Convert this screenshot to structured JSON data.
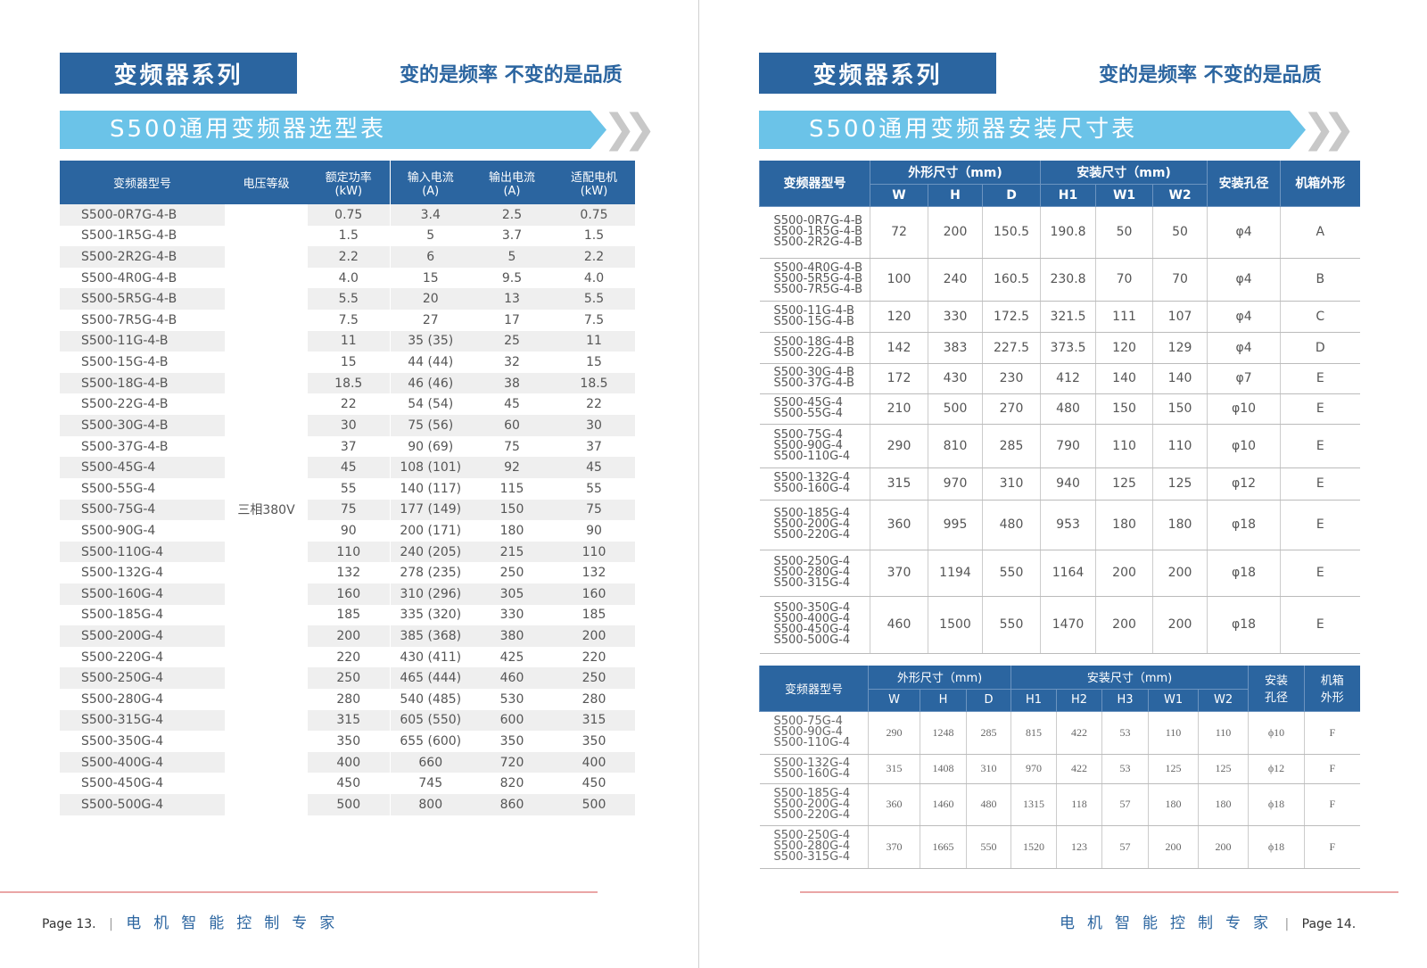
{
  "header": {
    "series_label": "变频器系列",
    "slogan": "变的是频率 不变的是品质"
  },
  "left": {
    "banner": "S500通用变频器选型表",
    "columns": [
      "变频器型号",
      "电压等级",
      "额定功率\n(kW)",
      "输入电流\n(A)",
      "输出电流\n(A)",
      "适配电机\n(kW)"
    ],
    "voltage": "三相380V",
    "rows": [
      [
        "S500-0R7G-4-B",
        "0.75",
        "3.4",
        "2.5",
        "0.75"
      ],
      [
        "S500-1R5G-4-B",
        "1.5",
        "5",
        "3.7",
        "1.5"
      ],
      [
        "S500-2R2G-4-B",
        "2.2",
        "6",
        "5",
        "2.2"
      ],
      [
        "S500-4R0G-4-B",
        "4.0",
        "15",
        "9.5",
        "4.0"
      ],
      [
        "S500-5R5G-4-B",
        "5.5",
        "20",
        "13",
        "5.5"
      ],
      [
        "S500-7R5G-4-B",
        "7.5",
        "27",
        "17",
        "7.5"
      ],
      [
        "S500-11G-4-B",
        "11",
        "35 (35)",
        "25",
        "11"
      ],
      [
        "S500-15G-4-B",
        "15",
        "44 (44)",
        "32",
        "15"
      ],
      [
        "S500-18G-4-B",
        "18.5",
        "46 (46)",
        "38",
        "18.5"
      ],
      [
        "S500-22G-4-B",
        "22",
        "54 (54)",
        "45",
        "22"
      ],
      [
        "S500-30G-4-B",
        "30",
        "75 (56)",
        "60",
        "30"
      ],
      [
        "S500-37G-4-B",
        "37",
        "90 (69)",
        "75",
        "37"
      ],
      [
        "S500-45G-4",
        "45",
        "108 (101)",
        "92",
        "45"
      ],
      [
        "S500-55G-4",
        "55",
        "140 (117)",
        "115",
        "55"
      ],
      [
        "S500-75G-4",
        "75",
        "177 (149)",
        "150",
        "75"
      ],
      [
        "S500-90G-4",
        "90",
        "200 (171)",
        "180",
        "90"
      ],
      [
        "S500-110G-4",
        "110",
        "240 (205)",
        "215",
        "110"
      ],
      [
        "S500-132G-4",
        "132",
        "278 (235)",
        "250",
        "132"
      ],
      [
        "S500-160G-4",
        "160",
        "310 (296)",
        "305",
        "160"
      ],
      [
        "S500-185G-4",
        "185",
        "335 (320)",
        "330",
        "185"
      ],
      [
        "S500-200G-4",
        "200",
        "385 (368)",
        "380",
        "200"
      ],
      [
        "S500-220G-4",
        "220",
        "430 (411)",
        "425",
        "220"
      ],
      [
        "S500-250G-4",
        "250",
        "465 (444)",
        "460",
        "250"
      ],
      [
        "S500-280G-4",
        "280",
        "540 (485)",
        "530",
        "280"
      ],
      [
        "S500-315G-4",
        "315",
        "605 (550)",
        "600",
        "315"
      ],
      [
        "S500-350G-4",
        "350",
        "655 (600)",
        "350",
        "350"
      ],
      [
        "S500-400G-4",
        "400",
        "660",
        "720",
        "400"
      ],
      [
        "S500-450G-4",
        "450",
        "745",
        "820",
        "450"
      ],
      [
        "S500-500G-4",
        "500",
        "800",
        "860",
        "500"
      ]
    ]
  },
  "right": {
    "banner": "S500通用变频器安装尺寸表",
    "table1": {
      "model_header": "变频器型号",
      "group1": "外形尺寸（mm)",
      "group2": "安装尺寸（mm)",
      "hole": "安装孔径",
      "case": "机箱外形",
      "sub1": [
        "W",
        "H",
        "D"
      ],
      "sub2": [
        "H1",
        "W1",
        "W2"
      ],
      "rows": [
        [
          [
            "S500-0R7G-4-B",
            "S500-1R5G-4-B",
            "S500-2R2G-4-B"
          ],
          "72",
          "200",
          "150.5",
          "190.8",
          "50",
          "50",
          "φ4",
          "A"
        ],
        [
          [
            "S500-4R0G-4-B",
            "S500-5R5G-4-B",
            "S500-7R5G-4-B"
          ],
          "100",
          "240",
          "160.5",
          "230.8",
          "70",
          "70",
          "φ4",
          "B"
        ],
        [
          [
            "S500-11G-4-B",
            "S500-15G-4-B"
          ],
          "120",
          "330",
          "172.5",
          "321.5",
          "111",
          "107",
          "φ4",
          "C"
        ],
        [
          [
            "S500-18G-4-B",
            "S500-22G-4-B"
          ],
          "142",
          "383",
          "227.5",
          "373.5",
          "120",
          "129",
          "φ4",
          "D"
        ],
        [
          [
            "S500-30G-4-B",
            "S500-37G-4-B"
          ],
          "172",
          "430",
          "230",
          "412",
          "140",
          "140",
          "φ7",
          "E"
        ],
        [
          [
            "S500-45G-4",
            "S500-55G-4"
          ],
          "210",
          "500",
          "270",
          "480",
          "150",
          "150",
          "φ10",
          "E"
        ],
        [
          [
            "S500-75G-4",
            "S500-90G-4",
            "S500-110G-4"
          ],
          "290",
          "810",
          "285",
          "790",
          "110",
          "110",
          "φ10",
          "E"
        ],
        [
          [
            "S500-132G-4",
            "S500-160G-4"
          ],
          "315",
          "970",
          "310",
          "940",
          "125",
          "125",
          "φ12",
          "E"
        ],
        [
          [
            "S500-185G-4",
            "S500-200G-4",
            "S500-220G-4"
          ],
          "360",
          "995",
          "480",
          "953",
          "180",
          "180",
          "φ18",
          "E"
        ],
        [
          [
            "S500-250G-4",
            "S500-280G-4",
            "S500-315G-4"
          ],
          "370",
          "1194",
          "550",
          "1164",
          "200",
          "200",
          "φ18",
          "E"
        ],
        [
          [
            "S500-350G-4",
            "S500-400G-4",
            "S500-450G-4",
            "S500-500G-4"
          ],
          "460",
          "1500",
          "550",
          "1470",
          "200",
          "200",
          "φ18",
          "E"
        ]
      ]
    },
    "table2": {
      "model_header": "变频器型号",
      "group1": "外形尺寸（mm)",
      "group2": "安装尺寸（mm)",
      "hole": "安装\n孔径",
      "case": "机箱\n外形",
      "sub1": [
        "W",
        "H",
        "D"
      ],
      "sub2": [
        "H1",
        "H2",
        "H3",
        "W1",
        "W2"
      ],
      "rows": [
        [
          [
            "S500-75G-4",
            "S500-90G-4",
            "S500-110G-4"
          ],
          "290",
          "1248",
          "285",
          "815",
          "422",
          "53",
          "110",
          "110",
          "ϕ10",
          "F"
        ],
        [
          [
            "S500-132G-4",
            "S500-160G-4"
          ],
          "315",
          "1408",
          "310",
          "970",
          "422",
          "53",
          "125",
          "125",
          "ϕ12",
          "F"
        ],
        [
          [
            "S500-185G-4",
            "S500-200G-4",
            "S500-220G-4"
          ],
          "360",
          "1460",
          "480",
          "1315",
          "118",
          "57",
          "180",
          "180",
          "ϕ18",
          "F"
        ],
        [
          [
            "S500-250G-4",
            "S500-280G-4",
            "S500-315G-4"
          ],
          "370",
          "1665",
          "550",
          "1520",
          "123",
          "57",
          "200",
          "200",
          "ϕ18",
          "F"
        ]
      ]
    }
  },
  "footer": {
    "left_page": "Page 13.",
    "right_page": "Page 14.",
    "motto": "电机智能控制专家"
  },
  "colors": {
    "primary": "#2b65a0",
    "banner": "#6bc3e8",
    "footer_line": "#eaa5a5"
  }
}
